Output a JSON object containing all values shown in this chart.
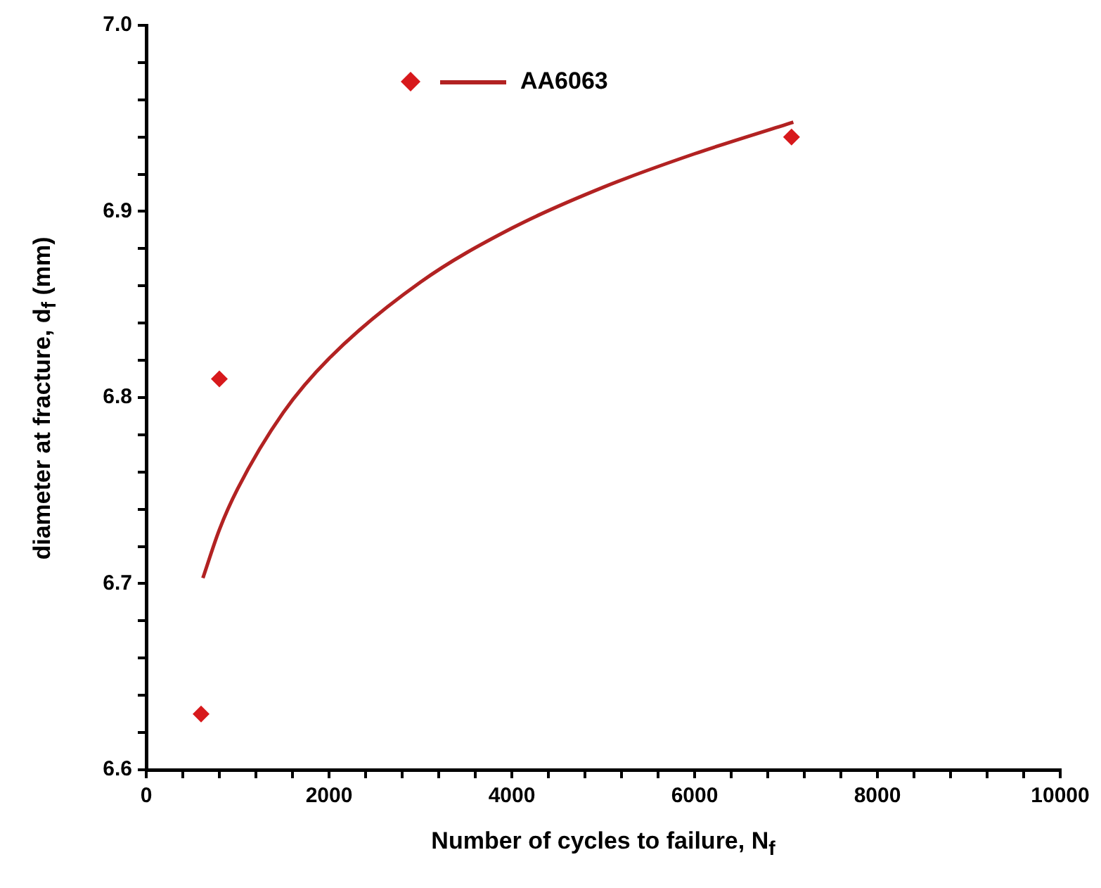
{
  "chart_data": {
    "type": "scatter",
    "xlabel": "Number of cycles to failure, N$_{f}$",
    "ylabel": "diameter at fracture, d$_{f}$ (mm)",
    "series": [
      {
        "name": "AA6063",
        "color": "#d7191c",
        "x": [
          600,
          800,
          7060
        ],
        "values": [
          6.63,
          6.81,
          6.94
        ],
        "marker": "diamond"
      },
      {
        "type": "line",
        "color": "#b22222",
        "x": [
          620,
          800,
          1000,
          1500,
          2000,
          3000,
          4000,
          5000,
          6000,
          7080
        ],
        "values": [
          6.703,
          6.729,
          6.751,
          6.792,
          6.821,
          6.862,
          6.891,
          6.913,
          6.931,
          6.948
        ],
        "marker": "none",
        "line_style": "solid"
      }
    ],
    "xlim": [
      0,
      10000
    ],
    "ylim": [
      6.6,
      7.0
    ],
    "xticks": [
      0,
      {
        "value": 400,
        "label": null
      },
      {
        "value": 800,
        "label": null
      },
      {
        "value": 1200,
        "label": null
      },
      {
        "value": 1600,
        "label": null
      },
      2000,
      {
        "value": 2400,
        "label": null
      },
      {
        "value": 2800,
        "label": null
      },
      {
        "value": 3200,
        "label": null
      },
      {
        "value": 3600,
        "label": null
      },
      4000,
      {
        "value": 4400,
        "label": null
      },
      {
        "value": 4800,
        "label": null
      },
      {
        "value": 5200,
        "label": null
      },
      {
        "value": 5600,
        "label": null
      },
      6000,
      {
        "value": 6400,
        "label": null
      },
      {
        "value": 6800,
        "label": null
      },
      {
        "value": 7200,
        "label": null
      },
      {
        "value": 7600,
        "label": null
      },
      8000,
      {
        "value": 8400,
        "label": null
      },
      {
        "value": 8800,
        "label": null
      },
      {
        "value": 9200,
        "label": null
      },
      {
        "value": 9600,
        "label": null
      },
      10000
    ],
    "yticks": [
      {
        "value": 6.6,
        "label": "6.6"
      },
      {
        "value": 6.62,
        "label": null
      },
      {
        "value": 6.64,
        "label": null
      },
      {
        "value": 6.66,
        "label": null
      },
      {
        "value": 6.68,
        "label": null
      },
      {
        "value": 6.7,
        "label": "6.7"
      },
      {
        "value": 6.72,
        "label": null
      },
      {
        "value": 6.74,
        "label": null
      },
      {
        "value": 6.76,
        "label": null
      },
      {
        "value": 6.78,
        "label": null
      },
      {
        "value": 6.8,
        "label": "6.8"
      },
      {
        "value": 6.82,
        "label": null
      },
      {
        "value": 6.84,
        "label": null
      },
      {
        "value": 6.86,
        "label": null
      },
      {
        "value": 6.88,
        "label": null
      },
      {
        "value": 6.9,
        "label": "6.9"
      },
      {
        "value": 6.92,
        "label": null
      },
      {
        "value": 6.94,
        "label": null
      },
      {
        "value": 6.96,
        "label": null
      },
      {
        "value": 6.98,
        "label": null
      },
      {
        "value": 7.0,
        "label": "7.0"
      }
    ],
    "grid": false,
    "legend": "top"
  }
}
